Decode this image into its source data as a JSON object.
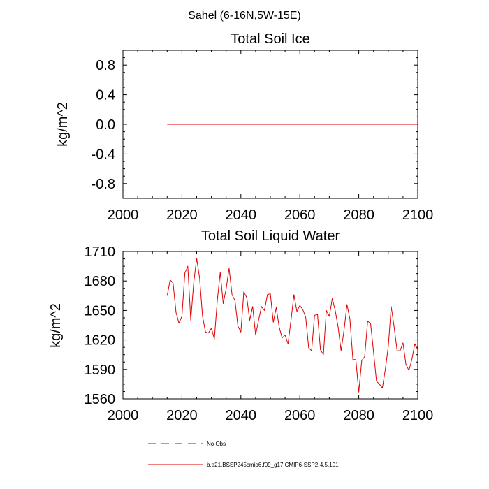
{
  "figure_title": "Sahel (6-16N,5W-15E)",
  "chart_data": [
    {
      "type": "line",
      "title": "Total Soil Ice",
      "xlabel": "",
      "ylabel": "kg/m^2",
      "xlim": [
        2000,
        2100
      ],
      "ylim": [
        -1.0,
        1.0
      ],
      "xticks": [
        2000,
        2020,
        2040,
        2060,
        2080,
        2100
      ],
      "xtick_labels": [
        "2000",
        "2020",
        "2040",
        "2060",
        "2080",
        "2100"
      ],
      "yticks": [
        -0.8,
        -0.4,
        0.0,
        0.4,
        0.8
      ],
      "ytick_labels": [
        "-0.8",
        "-0.4",
        "0.0",
        "0.4",
        "0.8"
      ],
      "series": [
        {
          "name": "b.e21.BSSP245cmip6.f09_g17.CMIP6-SSP2-4.5.101",
          "color": "#e00000",
          "x": [
            2015,
            2100
          ],
          "values": [
            0.0,
            0.0
          ]
        }
      ]
    },
    {
      "type": "line",
      "title": "Total Soil Liquid Water",
      "xlabel": "",
      "ylabel": "kg/m^2",
      "xlim": [
        2000,
        2100
      ],
      "ylim": [
        1560,
        1710
      ],
      "xticks": [
        2000,
        2020,
        2040,
        2060,
        2080,
        2100
      ],
      "xtick_labels": [
        "2000",
        "2020",
        "2040",
        "2060",
        "2080",
        "2100"
      ],
      "yticks": [
        1560,
        1590,
        1620,
        1650,
        1680,
        1710
      ],
      "ytick_labels": [
        "1560",
        "1590",
        "1620",
        "1650",
        "1680",
        "1710"
      ],
      "series": [
        {
          "name": "b.e21.BSSP245cmip6.f09_g17.CMIP6-SSP2-4.5.101",
          "color": "#e00000",
          "x": [
            2015,
            2016,
            2017,
            2018,
            2019,
            2020,
            2021,
            2022,
            2023,
            2024,
            2025,
            2026,
            2027,
            2028,
            2029,
            2030,
            2031,
            2032,
            2033,
            2034,
            2035,
            2036,
            2037,
            2038,
            2039,
            2040,
            2041,
            2042,
            2043,
            2044,
            2045,
            2046,
            2047,
            2048,
            2049,
            2050,
            2051,
            2052,
            2053,
            2054,
            2055,
            2056,
            2057,
            2058,
            2059,
            2060,
            2061,
            2062,
            2063,
            2064,
            2065,
            2066,
            2067,
            2068,
            2069,
            2070,
            2071,
            2072,
            2073,
            2074,
            2075,
            2076,
            2077,
            2078,
            2079,
            2080,
            2081,
            2082,
            2083,
            2084,
            2085,
            2086,
            2087,
            2088,
            2089,
            2090,
            2091,
            2092,
            2093,
            2094,
            2095,
            2096,
            2097,
            2098,
            2099,
            2100
          ],
          "values": [
            1665,
            1681,
            1678,
            1648,
            1637,
            1644,
            1688,
            1695,
            1640,
            1678,
            1703,
            1683,
            1644,
            1628,
            1627,
            1632,
            1621,
            1660,
            1689,
            1657,
            1672,
            1693,
            1666,
            1660,
            1634,
            1628,
            1669,
            1663,
            1640,
            1654,
            1625,
            1640,
            1654,
            1650,
            1666,
            1667,
            1638,
            1653,
            1633,
            1622,
            1625,
            1616,
            1640,
            1666,
            1649,
            1655,
            1651,
            1643,
            1612,
            1609,
            1645,
            1646,
            1610,
            1605,
            1650,
            1644,
            1662,
            1650,
            1633,
            1609,
            1630,
            1656,
            1641,
            1600,
            1600,
            1567,
            1599,
            1603,
            1639,
            1637,
            1608,
            1578,
            1575,
            1571,
            1590,
            1613,
            1654,
            1633,
            1609,
            1609,
            1617,
            1595,
            1589,
            1600,
            1616,
            1610
          ]
        }
      ]
    }
  ],
  "legend": [
    {
      "label": "No Obs",
      "color": "#3333cc",
      "style": "dashed"
    },
    {
      "label": "b.e21.BSSP245cmip6.f09_g17.CMIP6-SSP2-4.5.101",
      "color": "#e00000",
      "style": "solid"
    }
  ]
}
